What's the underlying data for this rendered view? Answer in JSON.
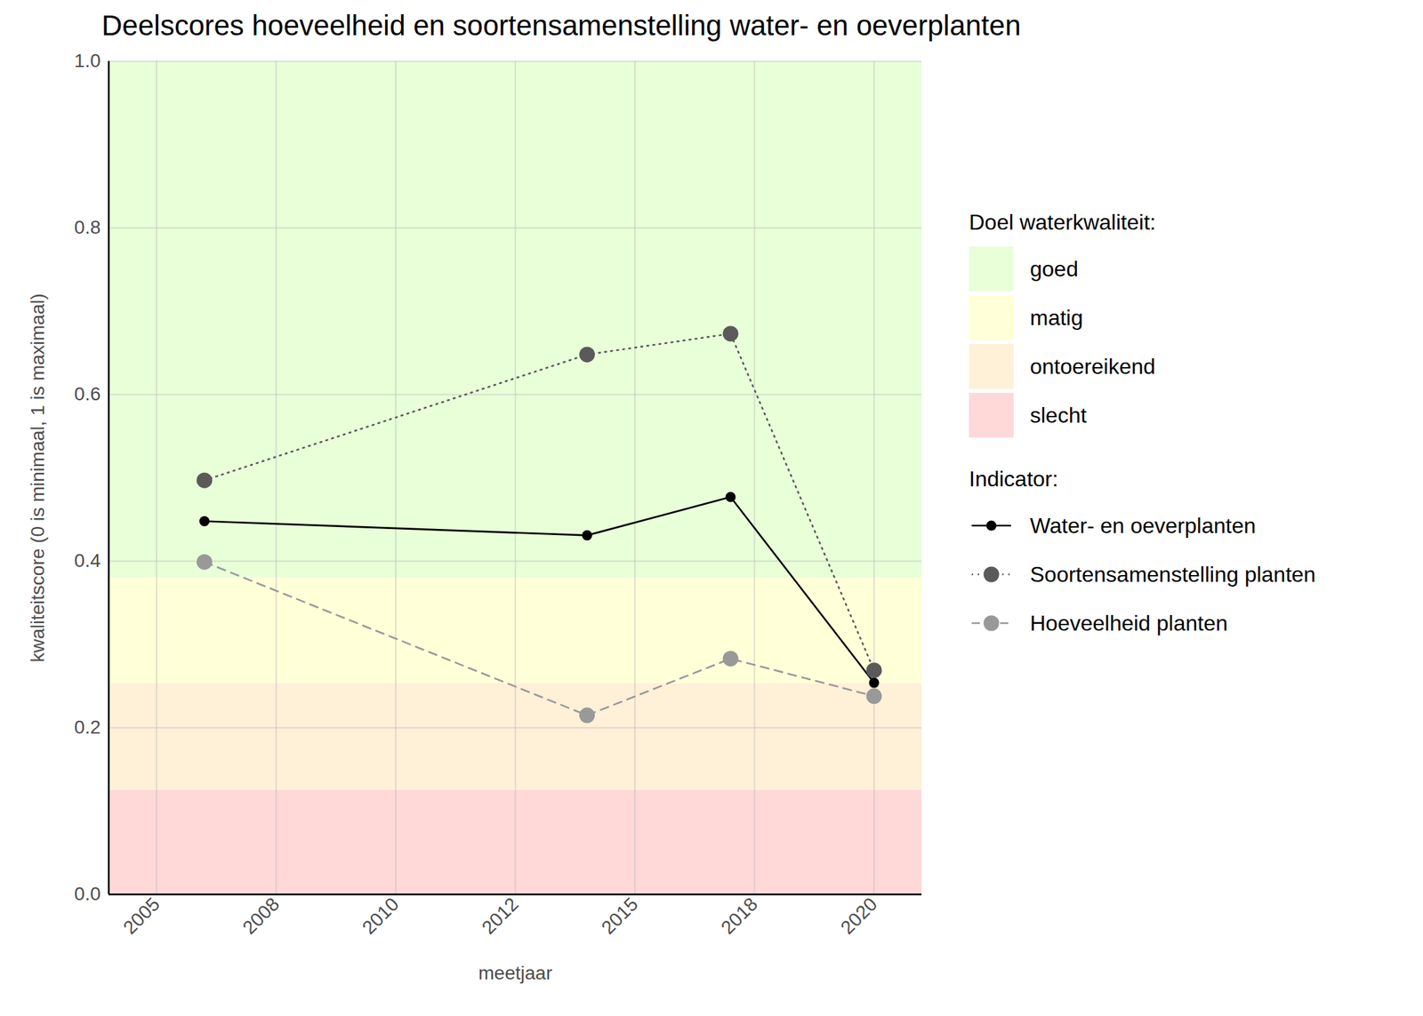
{
  "chart_data": {
    "type": "line",
    "title": "Deelscores hoeveelheid en soortensamenstelling water- en oeverplanten",
    "x_label": "meetjaar",
    "y_label": "kwaliteitscore (0 is minimaal, 1 is maximaal)",
    "x": [
      2006,
      2014,
      2017,
      2020
    ],
    "series": [
      {
        "name": "Water- en oeverplanten",
        "color": "#000000",
        "line_style": "solid",
        "marker": "circle",
        "values": [
          0.448,
          0.431,
          0.477,
          0.254
        ]
      },
      {
        "name": "Soortensamenstelling planten",
        "color": "#5a5a5a",
        "line_style": "dotted",
        "marker": "circle",
        "values": [
          0.497,
          0.648,
          0.673,
          0.269
        ]
      },
      {
        "name": "Hoeveelheid planten",
        "color": "#999999",
        "line_style": "dashed",
        "marker": "circle",
        "values": [
          0.399,
          0.215,
          0.283,
          0.238
        ]
      }
    ],
    "legend_title": "Indicator:",
    "bands": {
      "title": "Doel waterkwaliteit:",
      "items": [
        {
          "label": "goed",
          "from": 0.38,
          "to": 1.0,
          "color": "#e8ffd8"
        },
        {
          "label": "matig",
          "from": 0.253,
          "to": 0.38,
          "color": "#ffffd8"
        },
        {
          "label": "ontoereikend",
          "from": 0.125,
          "to": 0.253,
          "color": "#fff0d8"
        },
        {
          "label": "slecht",
          "from": 0.0,
          "to": 0.125,
          "color": "#ffd8d8"
        }
      ]
    },
    "xlim": [
      2004,
      2021
    ],
    "xticks": [
      2005,
      {
        "value": 2007.5,
        "label": "2008"
      },
      2010,
      {
        "value": 2012.5,
        "label": "2012"
      },
      2015,
      {
        "value": 2017.5,
        "label": "2018"
      },
      2020
    ],
    "ylim": [
      0,
      1
    ],
    "yticks": [
      {
        "value": 0,
        "label": "0.0"
      },
      0.2,
      0.4,
      0.6,
      0.8,
      {
        "value": 1,
        "label": "1.0"
      }
    ],
    "grid": true,
    "legend": "right"
  }
}
